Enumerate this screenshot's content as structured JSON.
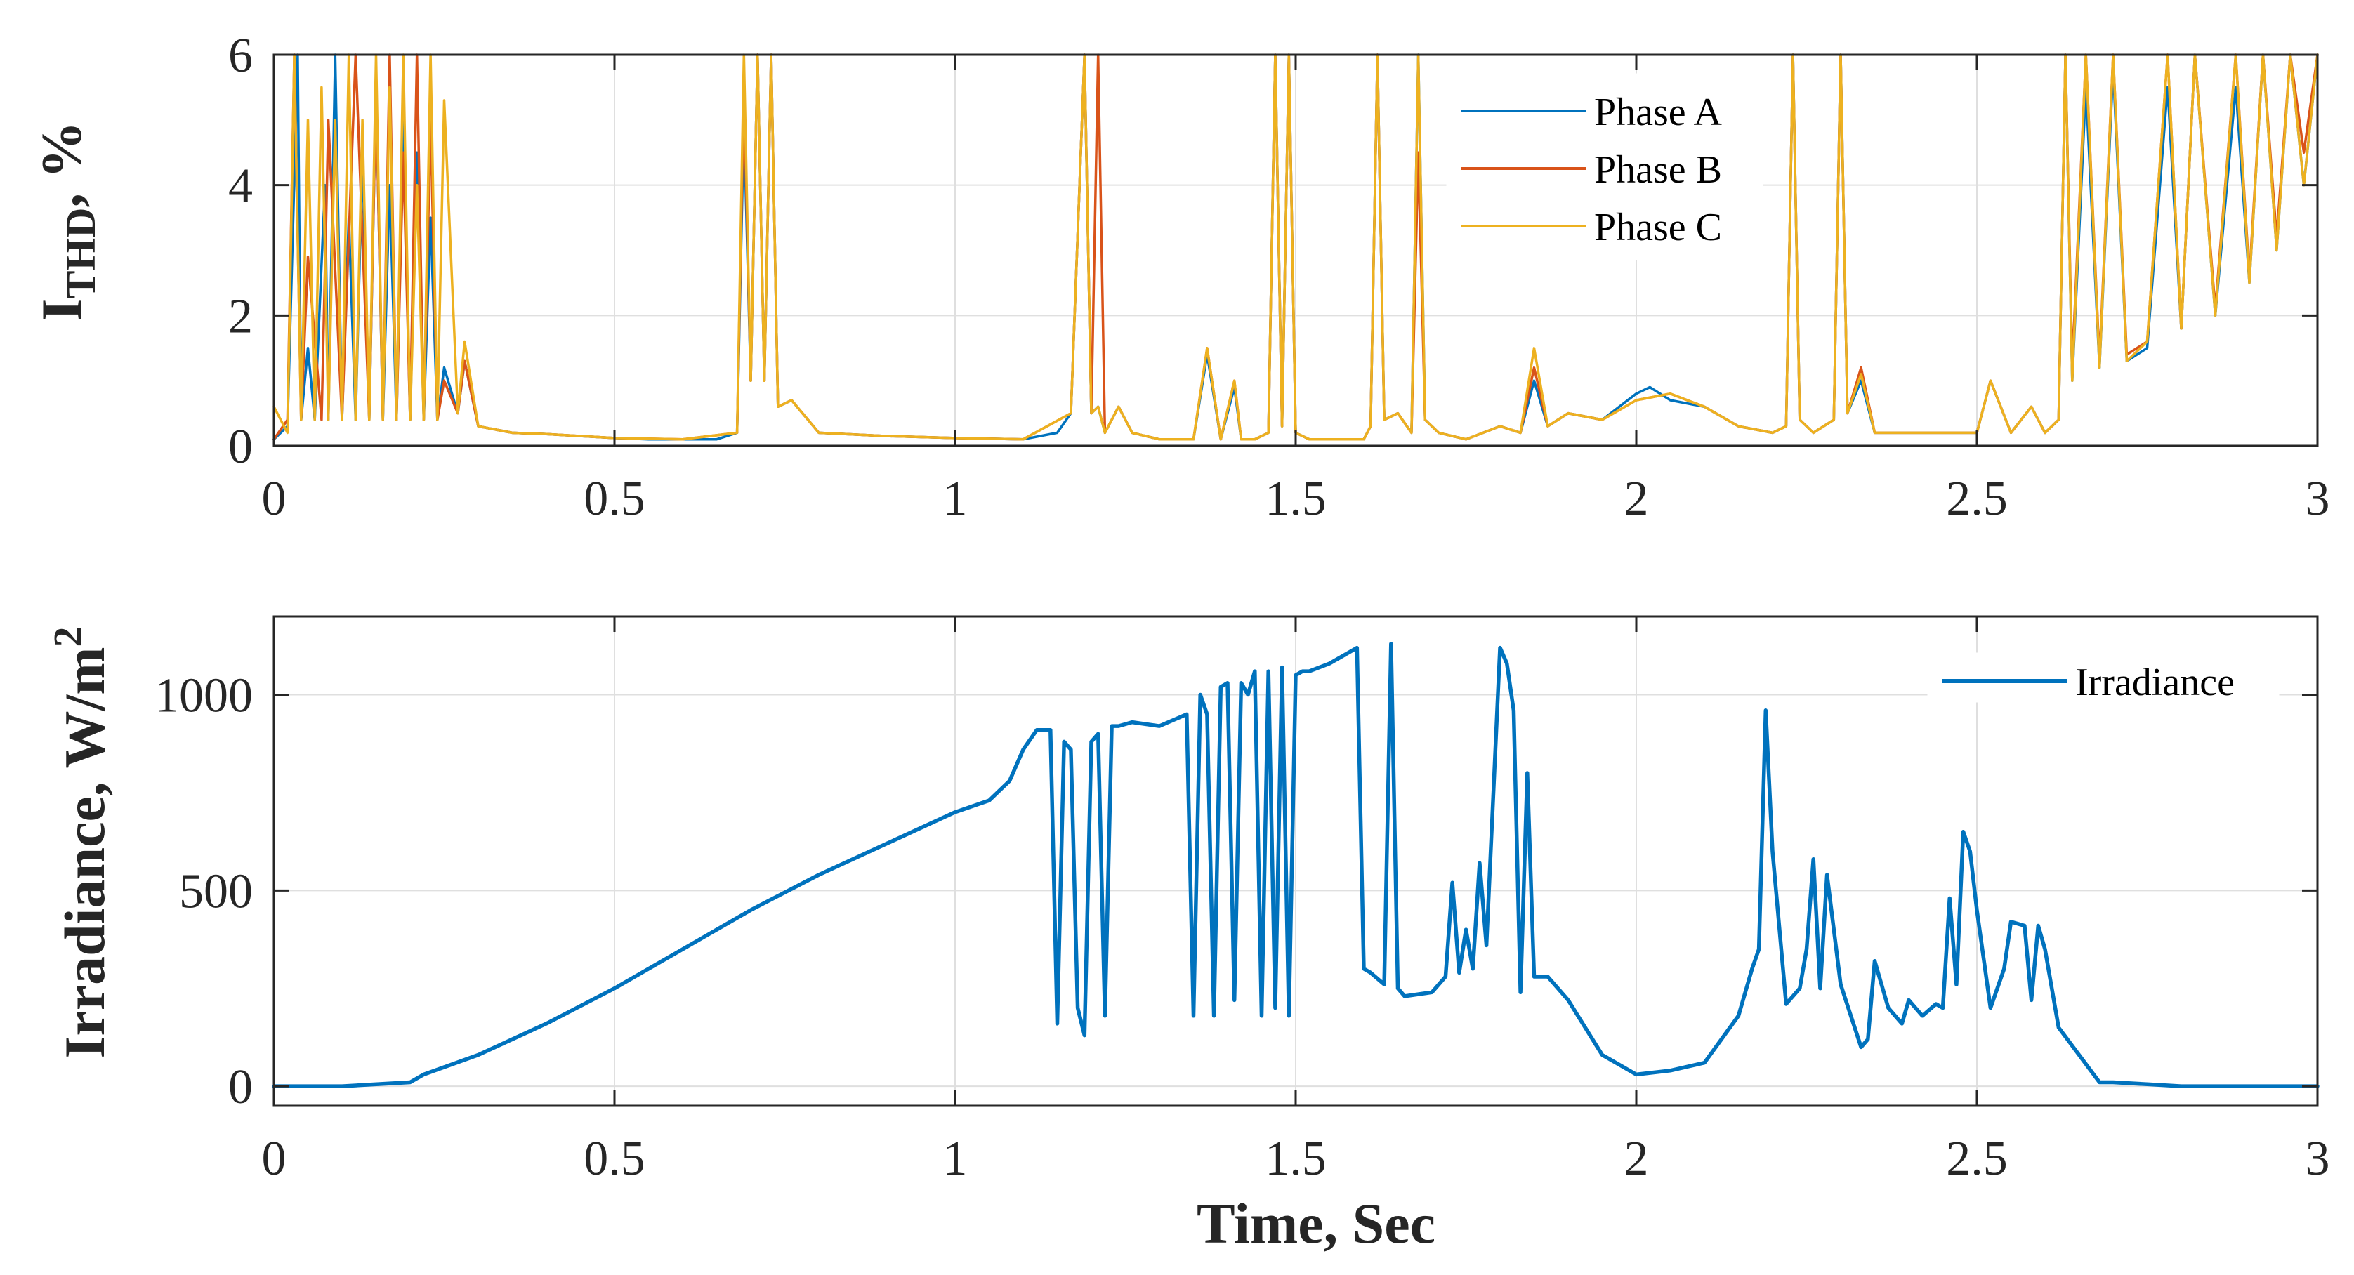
{
  "chart_data": [
    {
      "type": "line",
      "title": "",
      "xlabel": "",
      "ylabel_main": "I",
      "ylabel_sub": "THD",
      "ylabel_suffix": ", %",
      "xlim": [
        0,
        3
      ],
      "ylim": [
        0,
        6
      ],
      "xticks": [
        0,
        0.5,
        1,
        1.5,
        2,
        2.5,
        3
      ],
      "xtick_labels": [
        "0",
        "0.5",
        "1",
        "1.5",
        "2",
        "2.5",
        "3"
      ],
      "yticks": [
        0,
        2,
        4,
        6
      ],
      "ytick_labels": [
        "0",
        "2",
        "4",
        "6"
      ],
      "grid": true,
      "legend_position": "top-right",
      "series": [
        {
          "name": "Phase A",
          "color": "#0072BD",
          "x": [
            0,
            0.02,
            0.035,
            0.04,
            0.05,
            0.06,
            0.075,
            0.08,
            0.09,
            0.1,
            0.11,
            0.12,
            0.13,
            0.14,
            0.15,
            0.16,
            0.17,
            0.18,
            0.19,
            0.2,
            0.21,
            0.22,
            0.23,
            0.24,
            0.25,
            0.27,
            0.28,
            0.3,
            0.35,
            0.4,
            0.45,
            0.5,
            0.55,
            0.6,
            0.65,
            0.68,
            0.69,
            0.7,
            0.71,
            0.72,
            0.73,
            0.74,
            0.76,
            0.8,
            0.9,
            1.0,
            1.1,
            1.15,
            1.17,
            1.19,
            1.2,
            1.21,
            1.22,
            1.24,
            1.26,
            1.3,
            1.35,
            1.37,
            1.39,
            1.41,
            1.42,
            1.44,
            1.46,
            1.47,
            1.48,
            1.49,
            1.5,
            1.52,
            1.6,
            1.61,
            1.62,
            1.63,
            1.65,
            1.67,
            1.68,
            1.69,
            1.71,
            1.75,
            1.8,
            1.83,
            1.85,
            1.87,
            1.9,
            1.95,
            2.0,
            2.02,
            2.05,
            2.1,
            2.15,
            2.2,
            2.22,
            2.23,
            2.24,
            2.26,
            2.29,
            2.3,
            2.31,
            2.33,
            2.35,
            2.4,
            2.45,
            2.5,
            2.52,
            2.55,
            2.58,
            2.6,
            2.62,
            2.63,
            2.64,
            2.66,
            2.68,
            2.7,
            2.72,
            2.75,
            2.78,
            2.8,
            2.82,
            2.85,
            2.88,
            2.9,
            2.92,
            2.94,
            2.96,
            2.98,
            3.0
          ],
          "y": [
            0.1,
            0.3,
            6.0,
            0.4,
            1.5,
            0.4,
            4.0,
            0.4,
            6.0,
            0.4,
            3.5,
            0.4,
            4.5,
            0.4,
            5.5,
            0.4,
            4.0,
            0.4,
            5.0,
            0.4,
            4.5,
            0.4,
            3.5,
            0.4,
            1.2,
            0.5,
            1.3,
            0.3,
            0.2,
            0.18,
            0.15,
            0.12,
            0.1,
            0.1,
            0.1,
            0.2,
            5.0,
            1.0,
            6.0,
            1.0,
            6.0,
            0.6,
            0.7,
            0.2,
            0.15,
            0.12,
            0.1,
            0.2,
            0.5,
            6.0,
            0.5,
            0.6,
            0.2,
            0.6,
            0.2,
            0.1,
            0.1,
            1.4,
            0.1,
            0.9,
            0.1,
            0.1,
            0.2,
            6.0,
            0.3,
            6.0,
            0.2,
            0.1,
            0.1,
            0.3,
            6.0,
            0.4,
            0.5,
            0.2,
            6.0,
            0.4,
            0.2,
            0.1,
            0.3,
            0.2,
            1.0,
            0.3,
            0.5,
            0.4,
            0.8,
            0.9,
            0.7,
            0.6,
            0.3,
            0.2,
            0.3,
            6.0,
            0.4,
            0.2,
            0.4,
            6.0,
            0.5,
            1.0,
            0.2,
            0.2,
            0.2,
            0.2,
            1.0,
            0.2,
            0.6,
            0.2,
            0.4,
            6.0,
            1.0,
            5.5,
            1.2,
            5.8,
            1.3,
            1.5,
            5.5,
            1.8,
            6.0,
            2.0,
            5.5,
            2.5,
            6.0,
            3.0,
            6.0,
            4.0,
            6.0
          ]
        },
        {
          "name": "Phase B",
          "color": "#D95319",
          "x": [
            0,
            0.02,
            0.03,
            0.04,
            0.05,
            0.07,
            0.08,
            0.1,
            0.12,
            0.14,
            0.15,
            0.16,
            0.17,
            0.18,
            0.19,
            0.2,
            0.21,
            0.22,
            0.23,
            0.24,
            0.25,
            0.27,
            0.28,
            0.3,
            0.35,
            0.4,
            0.5,
            0.6,
            0.68,
            0.69,
            0.7,
            0.71,
            0.72,
            0.73,
            0.74,
            0.76,
            0.8,
            0.9,
            1.0,
            1.1,
            1.17,
            1.19,
            1.2,
            1.21,
            1.22,
            1.24,
            1.26,
            1.3,
            1.35,
            1.37,
            1.39,
            1.41,
            1.42,
            1.44,
            1.46,
            1.47,
            1.48,
            1.49,
            1.5,
            1.52,
            1.6,
            1.61,
            1.62,
            1.63,
            1.65,
            1.67,
            1.68,
            1.69,
            1.71,
            1.75,
            1.8,
            1.83,
            1.85,
            1.87,
            1.9,
            1.95,
            2.0,
            2.05,
            2.1,
            2.15,
            2.2,
            2.22,
            2.23,
            2.24,
            2.26,
            2.29,
            2.3,
            2.31,
            2.33,
            2.35,
            2.4,
            2.45,
            2.5,
            2.52,
            2.55,
            2.58,
            2.6,
            2.62,
            2.63,
            2.64,
            2.66,
            2.68,
            2.7,
            2.72,
            2.75,
            2.78,
            2.8,
            2.82,
            2.85,
            2.88,
            2.9,
            2.92,
            2.94,
            2.96,
            2.98,
            3.0
          ],
          "y": [
            0.1,
            0.4,
            6.0,
            0.4,
            2.9,
            0.4,
            5.0,
            0.4,
            6.0,
            0.4,
            5.5,
            0.4,
            6.0,
            0.4,
            4.5,
            0.4,
            6.0,
            0.4,
            5.0,
            0.4,
            1.0,
            0.5,
            1.3,
            0.3,
            0.2,
            0.18,
            0.12,
            0.1,
            0.2,
            5.5,
            1.0,
            6.0,
            1.0,
            6.0,
            0.6,
            0.7,
            0.2,
            0.15,
            0.12,
            0.1,
            0.5,
            6.0,
            0.5,
            6.0,
            0.2,
            0.6,
            0.2,
            0.1,
            0.1,
            1.5,
            0.1,
            1.0,
            0.1,
            0.1,
            0.2,
            6.0,
            0.3,
            6.0,
            0.2,
            0.1,
            0.1,
            0.3,
            6.0,
            0.4,
            0.5,
            0.2,
            4.5,
            0.4,
            0.2,
            0.1,
            0.3,
            0.2,
            1.2,
            0.3,
            0.5,
            0.4,
            0.7,
            0.8,
            0.6,
            0.3,
            0.2,
            0.3,
            6.0,
            0.4,
            0.2,
            0.4,
            6.0,
            0.5,
            1.2,
            0.2,
            0.2,
            0.2,
            0.2,
            1.0,
            0.2,
            0.6,
            0.2,
            0.4,
            6.0,
            1.2,
            6.0,
            1.3,
            6.0,
            1.4,
            1.6,
            6.0,
            1.8,
            6.0,
            2.1,
            6.0,
            2.6,
            6.0,
            3.2,
            6.0,
            4.5,
            6.0
          ]
        },
        {
          "name": "Phase C",
          "color": "#EDB120",
          "x": [
            0,
            0.02,
            0.03,
            0.04,
            0.05,
            0.06,
            0.07,
            0.08,
            0.09,
            0.1,
            0.11,
            0.12,
            0.13,
            0.14,
            0.15,
            0.16,
            0.17,
            0.18,
            0.19,
            0.2,
            0.21,
            0.22,
            0.23,
            0.24,
            0.25,
            0.27,
            0.28,
            0.3,
            0.35,
            0.4,
            0.5,
            0.6,
            0.68,
            0.69,
            0.7,
            0.71,
            0.72,
            0.73,
            0.74,
            0.76,
            0.8,
            0.9,
            1.0,
            1.1,
            1.17,
            1.19,
            1.2,
            1.21,
            1.22,
            1.24,
            1.26,
            1.3,
            1.35,
            1.37,
            1.39,
            1.41,
            1.42,
            1.44,
            1.46,
            1.47,
            1.48,
            1.49,
            1.5,
            1.52,
            1.6,
            1.61,
            1.62,
            1.63,
            1.65,
            1.67,
            1.68,
            1.69,
            1.71,
            1.75,
            1.8,
            1.83,
            1.85,
            1.87,
            1.9,
            1.95,
            2.0,
            2.05,
            2.1,
            2.15,
            2.2,
            2.22,
            2.23,
            2.24,
            2.26,
            2.29,
            2.3,
            2.31,
            2.33,
            2.35,
            2.4,
            2.45,
            2.5,
            2.52,
            2.55,
            2.58,
            2.6,
            2.62,
            2.63,
            2.64,
            2.66,
            2.68,
            2.7,
            2.72,
            2.75,
            2.78,
            2.8,
            2.82,
            2.85,
            2.88,
            2.9,
            2.92,
            2.94,
            2.96,
            2.98,
            3.0
          ],
          "y": [
            0.6,
            0.2,
            6.0,
            0.4,
            5.0,
            0.4,
            5.5,
            0.4,
            5.0,
            0.4,
            6.0,
            0.4,
            5.0,
            0.4,
            6.0,
            0.4,
            5.5,
            0.4,
            6.0,
            0.4,
            4.0,
            0.4,
            6.0,
            0.4,
            5.3,
            0.5,
            1.6,
            0.3,
            0.2,
            0.18,
            0.12,
            0.1,
            0.2,
            6.0,
            1.0,
            6.0,
            1.0,
            6.0,
            0.6,
            0.7,
            0.2,
            0.15,
            0.12,
            0.1,
            0.5,
            6.0,
            0.5,
            0.6,
            0.2,
            0.6,
            0.2,
            0.1,
            0.1,
            1.5,
            0.1,
            1.0,
            0.1,
            0.1,
            0.2,
            6.0,
            0.3,
            6.0,
            0.2,
            0.1,
            0.1,
            0.3,
            6.0,
            0.4,
            0.5,
            0.2,
            6.0,
            0.4,
            0.2,
            0.1,
            0.3,
            0.2,
            1.5,
            0.3,
            0.5,
            0.4,
            0.7,
            0.8,
            0.6,
            0.3,
            0.2,
            0.3,
            6.0,
            0.4,
            0.2,
            0.4,
            6.0,
            0.5,
            1.1,
            0.2,
            0.2,
            0.2,
            0.2,
            1.0,
            0.2,
            0.6,
            0.2,
            0.4,
            6.0,
            1.0,
            6.0,
            1.2,
            6.0,
            1.3,
            1.6,
            6.0,
            1.8,
            6.0,
            2.0,
            6.0,
            2.5,
            6.0,
            3.0,
            6.0,
            4.0,
            6.0
          ]
        }
      ]
    },
    {
      "type": "line",
      "title": "",
      "xlabel": "Time, Sec",
      "ylabel_main": "Irradiance, W/m",
      "ylabel_sup": "2",
      "xlim": [
        0,
        3
      ],
      "ylim": [
        -50,
        1200
      ],
      "xticks": [
        0,
        0.5,
        1,
        1.5,
        2,
        2.5,
        3
      ],
      "xtick_labels": [
        "0",
        "0.5",
        "1",
        "1.5",
        "2",
        "2.5",
        "3"
      ],
      "yticks": [
        0,
        500,
        1000
      ],
      "ytick_labels": [
        "0",
        "500",
        "1000"
      ],
      "grid": true,
      "legend_position": "top-right",
      "series": [
        {
          "name": "Irradiance",
          "color": "#0072BD",
          "x": [
            0,
            0.1,
            0.2,
            0.22,
            0.3,
            0.4,
            0.5,
            0.6,
            0.7,
            0.8,
            0.9,
            1.0,
            1.05,
            1.08,
            1.1,
            1.12,
            1.14,
            1.15,
            1.16,
            1.17,
            1.18,
            1.19,
            1.2,
            1.21,
            1.22,
            1.23,
            1.24,
            1.26,
            1.3,
            1.34,
            1.35,
            1.36,
            1.37,
            1.38,
            1.39,
            1.4,
            1.41,
            1.42,
            1.43,
            1.44,
            1.45,
            1.46,
            1.47,
            1.48,
            1.49,
            1.5,
            1.51,
            1.52,
            1.55,
            1.59,
            1.6,
            1.61,
            1.63,
            1.64,
            1.65,
            1.66,
            1.7,
            1.72,
            1.73,
            1.74,
            1.75,
            1.76,
            1.77,
            1.78,
            1.8,
            1.81,
            1.82,
            1.83,
            1.84,
            1.85,
            1.87,
            1.9,
            1.95,
            2.0,
            2.05,
            2.1,
            2.15,
            2.17,
            2.18,
            2.19,
            2.2,
            2.22,
            2.24,
            2.25,
            2.26,
            2.27,
            2.28,
            2.3,
            2.33,
            2.34,
            2.35,
            2.37,
            2.39,
            2.4,
            2.42,
            2.44,
            2.45,
            2.46,
            2.47,
            2.48,
            2.49,
            2.5,
            2.52,
            2.54,
            2.55,
            2.57,
            2.58,
            2.59,
            2.6,
            2.62,
            2.65,
            2.68,
            2.7,
            2.75,
            2.8,
            2.9,
            3.0
          ],
          "y": [
            0,
            0,
            10,
            30,
            80,
            160,
            250,
            350,
            450,
            540,
            620,
            700,
            730,
            780,
            860,
            910,
            910,
            160,
            880,
            860,
            200,
            130,
            880,
            900,
            180,
            920,
            920,
            930,
            920,
            950,
            180,
            1000,
            950,
            180,
            1020,
            1030,
            220,
            1030,
            1000,
            1060,
            180,
            1060,
            200,
            1070,
            180,
            1050,
            1060,
            1060,
            1080,
            1120,
            300,
            290,
            260,
            1130,
            250,
            230,
            240,
            280,
            520,
            290,
            400,
            300,
            570,
            360,
            1120,
            1080,
            960,
            240,
            800,
            280,
            280,
            220,
            80,
            30,
            40,
            60,
            180,
            300,
            350,
            960,
            600,
            210,
            250,
            350,
            580,
            250,
            540,
            260,
            100,
            120,
            320,
            200,
            160,
            220,
            180,
            210,
            200,
            480,
            260,
            650,
            600,
            450,
            200,
            300,
            420,
            410,
            220,
            410,
            350,
            150,
            80,
            10,
            10,
            5,
            0,
            0,
            0
          ]
        }
      ]
    }
  ]
}
